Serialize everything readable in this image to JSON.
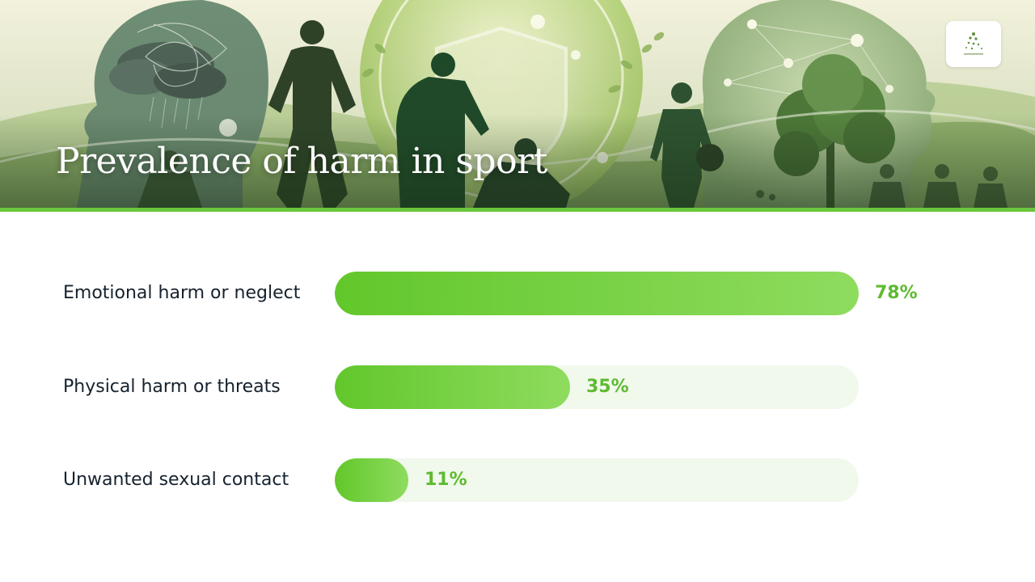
{
  "header": {
    "title": "Prevalence of harm in sport",
    "banner_illustration": "sports-wellbeing-illustration",
    "logo_icon": "organization-logo-icon"
  },
  "colors": {
    "accent": "#6cc63c",
    "bar_fill_start": "#62c72b",
    "bar_fill_end": "#8fdc5f",
    "bar_track": "#f1f8ec",
    "value_text": "#5dbb2f",
    "label_text": "#16222e"
  },
  "chart_data": {
    "type": "bar",
    "orientation": "horizontal",
    "title": "Prevalence of harm in sport",
    "categories": [
      "Emotional harm or neglect",
      "Physical harm or threats",
      "Unwanted sexual contact"
    ],
    "values": [
      78,
      35,
      11
    ],
    "value_labels": [
      "78%",
      "35%",
      "11%"
    ],
    "unit": "%",
    "xlim": [
      0,
      78
    ],
    "grid": false,
    "legend": "none"
  }
}
